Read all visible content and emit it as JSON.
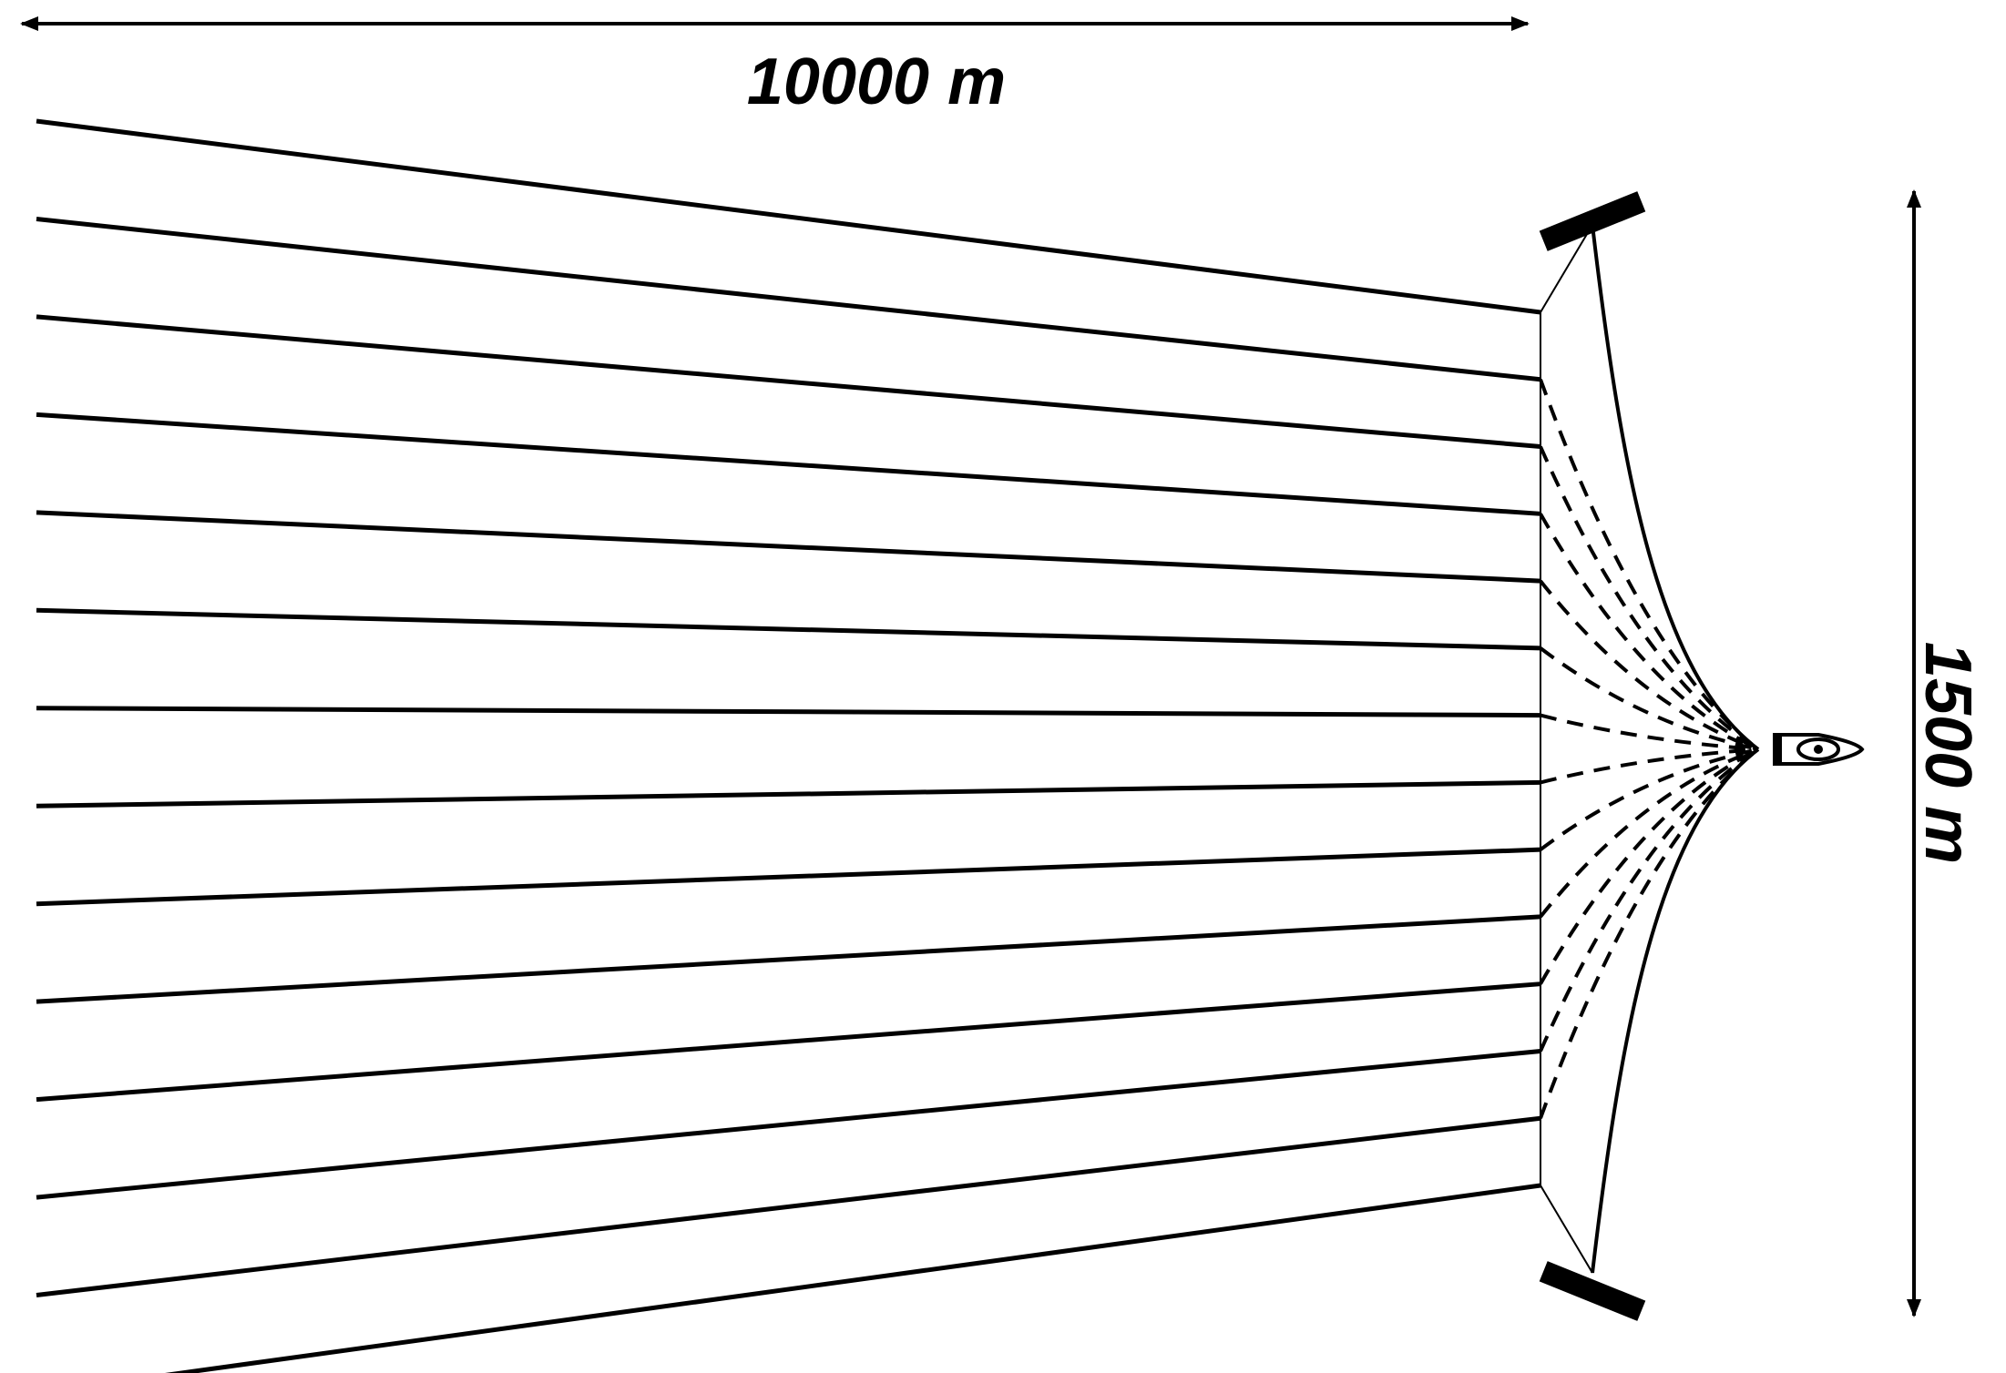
{
  "dimensions": {
    "width_label": "10000 m",
    "height_label": "1500 m"
  },
  "streamers": {
    "count": 14
  },
  "colors": {
    "ink": "#000000",
    "background": "#ffffff"
  },
  "icons": {
    "vessel": "ship-icon",
    "paravane": "paravane-icon"
  }
}
